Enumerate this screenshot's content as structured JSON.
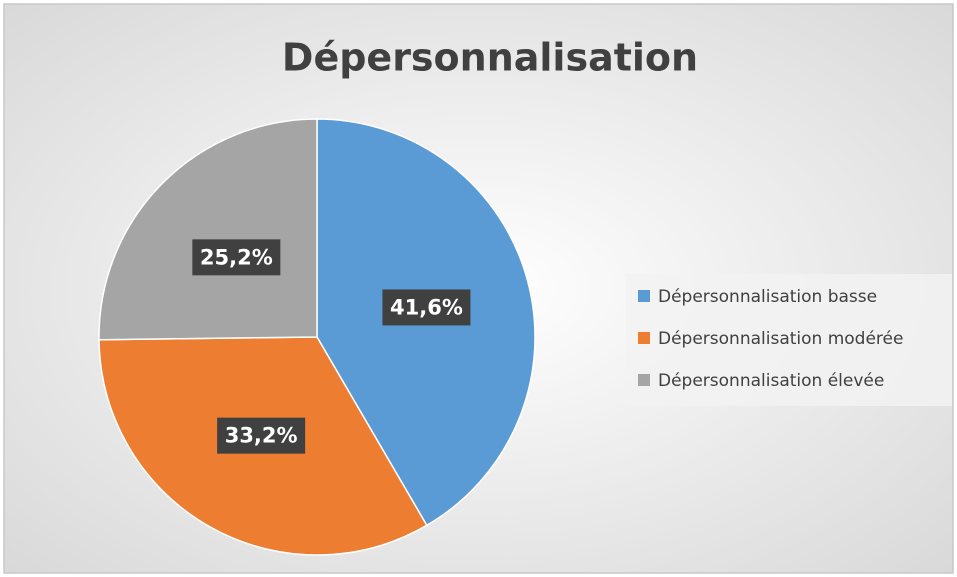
{
  "chart_data": {
    "type": "pie",
    "title": "Dépersonnalisation",
    "categories": [
      "Dépersonnalisation basse",
      "Dépersonnalisation modérée",
      "Dépersonnalisation élevée"
    ],
    "values": [
      41.6,
      33.2,
      25.2
    ],
    "value_labels": [
      "41,6%",
      "33,2%",
      "25,2%"
    ],
    "colors": [
      "#5b9bd5",
      "#ed7d31",
      "#a5a5a5"
    ],
    "legend": "right"
  }
}
